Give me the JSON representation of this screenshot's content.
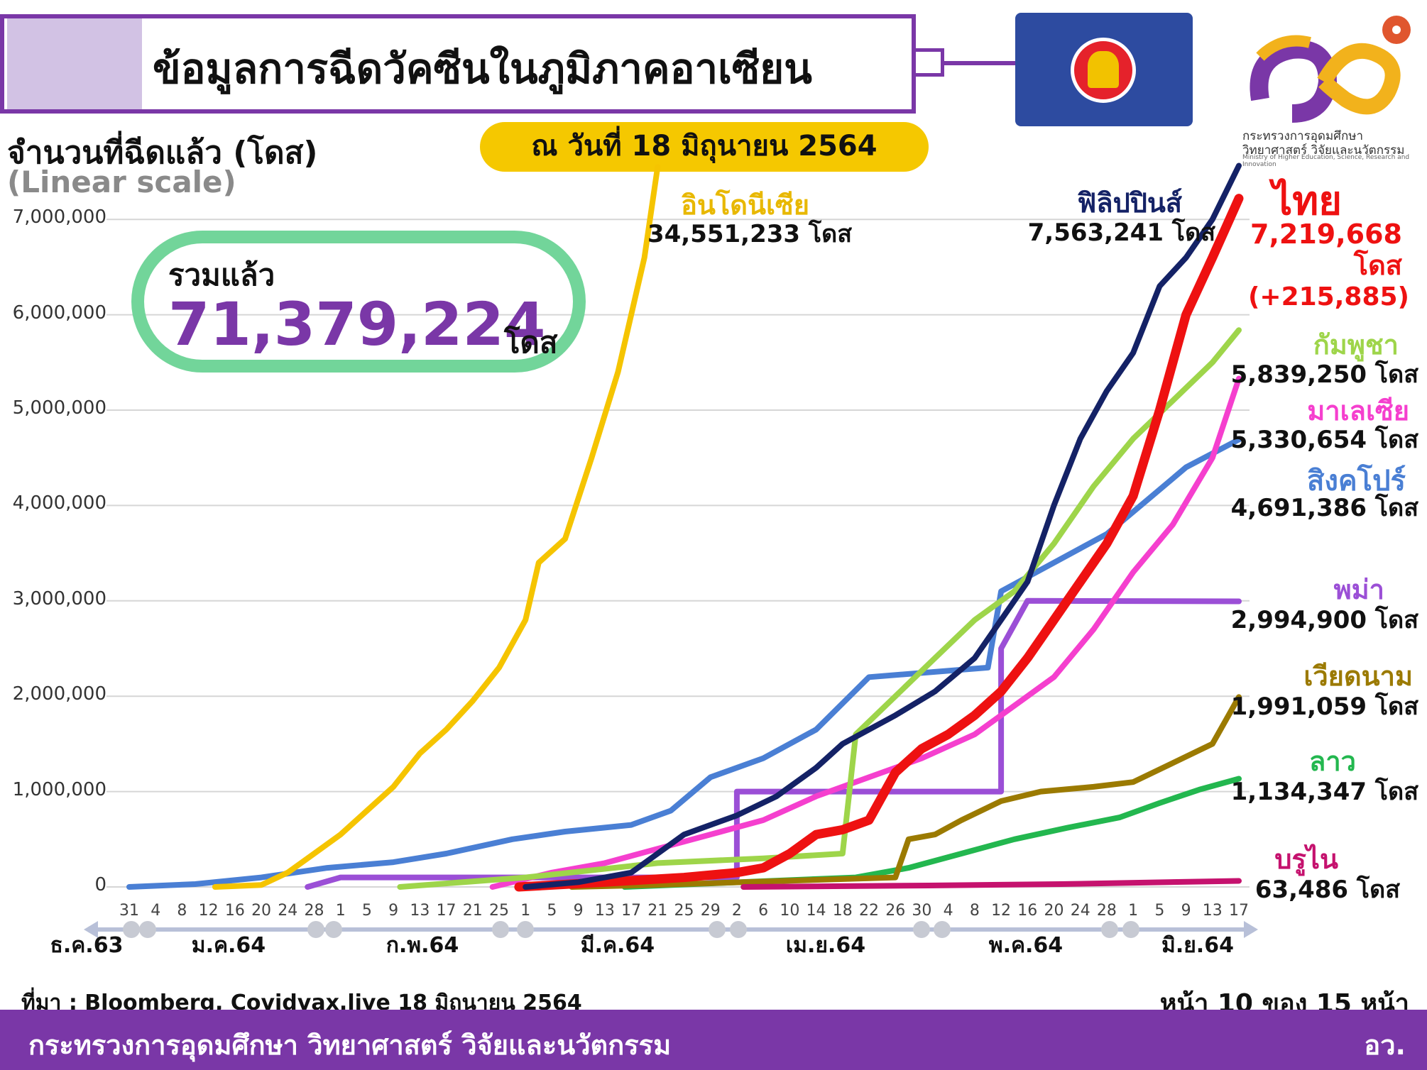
{
  "title": "ข้อมูลการฉีดวัคซีนในภูมิภาคอาเซียน",
  "date_label": "ณ วันที่ 18 มิถุนายน 2564",
  "y_axis_title": "จำนวนที่ฉีดแล้ว (โดส)",
  "y_scale_note": "(Linear scale)",
  "total": {
    "label": "รวมแล้ว",
    "value": "71,379,224",
    "unit": "โดส"
  },
  "logo": {
    "text1": "กระทรวงการอุดมศึกษา",
    "text2": "วิทยาศาสตร์ วิจัยและนวัตกรรม",
    "text3": "Ministry of Higher Education, Science, Research and Innovation"
  },
  "source": "ที่มา : Bloomberg, Covidvax.live 18 มิถุนายน 2564",
  "page": "หน้า 10 ของ 15 หน้า",
  "footer": {
    "ministry": "กระทรวงการอุดมศึกษา วิทยาศาสตร์ วิจัยและนวัตกรรม",
    "abbr": "อว."
  },
  "chart_data": {
    "type": "line",
    "ylim": [
      0,
      7500000
    ],
    "y_ticks": [
      "0",
      "1,000,000",
      "2,000,000",
      "3,000,000",
      "4,000,000",
      "5,000,000",
      "6,000,000",
      "7,000,000"
    ],
    "y_tick_values": [
      0,
      1000000,
      2000000,
      3000000,
      4000000,
      5000000,
      6000000,
      7000000
    ],
    "x_start": "2020-12-31",
    "x_end": "2021-06-17",
    "x_tick_labels": [
      "31",
      "4",
      "8",
      "12",
      "16",
      "20",
      "24",
      "28",
      "1",
      "5",
      "9",
      "13",
      "17",
      "21",
      "25",
      "1",
      "5",
      "9",
      "13",
      "17",
      "21",
      "25",
      "29",
      "2",
      "6",
      "10",
      "14",
      "18",
      "22",
      "26",
      "30",
      "4",
      "8",
      "12",
      "16",
      "20",
      "24",
      "28",
      "1",
      "5",
      "9",
      "13",
      "17"
    ],
    "months": [
      "ธ.ค.63",
      "ม.ค.64",
      "ก.พ.64",
      "มี.ค.64",
      "เม.ย.64",
      "พ.ค.64",
      "มิ.ย.64"
    ],
    "series": [
      {
        "name": "อินโดนีเซีย",
        "value_label": "34,551,233 โดส",
        "color": "#f5c400",
        "points": [
          [
            "2021-01-13",
            0
          ],
          [
            "2021-01-20",
            20000
          ],
          [
            "2021-01-24",
            150000
          ],
          [
            "2021-01-28",
            350000
          ],
          [
            "2021-02-01",
            550000
          ],
          [
            "2021-02-05",
            800000
          ],
          [
            "2021-02-09",
            1050000
          ],
          [
            "2021-02-13",
            1400000
          ],
          [
            "2021-02-17",
            1650000
          ],
          [
            "2021-02-21",
            1950000
          ],
          [
            "2021-02-25",
            2300000
          ],
          [
            "2021-03-01",
            2800000
          ],
          [
            "2021-03-03",
            3400000
          ],
          [
            "2021-03-07",
            3650000
          ],
          [
            "2021-03-11",
            4500000
          ],
          [
            "2021-03-15",
            5400000
          ],
          [
            "2021-03-19",
            6600000
          ],
          [
            "2021-03-21",
            7550000
          ]
        ]
      },
      {
        "name": "ฟิลิปปินส์",
        "value_label": "7,563,241 โดส",
        "color": "#142266",
        "points": [
          [
            "2021-03-01",
            0
          ],
          [
            "2021-03-09",
            50000
          ],
          [
            "2021-03-17",
            150000
          ],
          [
            "2021-03-21",
            350000
          ],
          [
            "2021-03-25",
            550000
          ],
          [
            "2021-04-02",
            750000
          ],
          [
            "2021-04-08",
            950000
          ],
          [
            "2021-04-14",
            1250000
          ],
          [
            "2021-04-18",
            1500000
          ],
          [
            "2021-04-26",
            1800000
          ],
          [
            "2021-05-02",
            2050000
          ],
          [
            "2021-05-08",
            2400000
          ],
          [
            "2021-05-12",
            2800000
          ],
          [
            "2021-05-16",
            3200000
          ],
          [
            "2021-05-20",
            4000000
          ],
          [
            "2021-05-24",
            4700000
          ],
          [
            "2021-05-28",
            5200000
          ],
          [
            "2021-06-01",
            5600000
          ],
          [
            "2021-06-05",
            6300000
          ],
          [
            "2021-06-09",
            6600000
          ],
          [
            "2021-06-13",
            7000000
          ],
          [
            "2021-06-17",
            7563241
          ]
        ]
      },
      {
        "name": "ไทย",
        "value_label": "7,219,668 โดส",
        "extra_label": "(+215,885)",
        "color": "#ee1111",
        "points": [
          [
            "2021-02-28",
            0
          ],
          [
            "2021-03-13",
            50000
          ],
          [
            "2021-03-25",
            100000
          ],
          [
            "2021-04-02",
            150000
          ],
          [
            "2021-04-06",
            200000
          ],
          [
            "2021-04-10",
            350000
          ],
          [
            "2021-04-14",
            550000
          ],
          [
            "2021-04-18",
            600000
          ],
          [
            "2021-04-22",
            700000
          ],
          [
            "2021-04-26",
            1200000
          ],
          [
            "2021-04-30",
            1450000
          ],
          [
            "2021-05-04",
            1600000
          ],
          [
            "2021-05-08",
            1800000
          ],
          [
            "2021-05-12",
            2050000
          ],
          [
            "2021-05-16",
            2400000
          ],
          [
            "2021-05-20",
            2800000
          ],
          [
            "2021-05-24",
            3200000
          ],
          [
            "2021-05-28",
            3600000
          ],
          [
            "2021-06-01",
            4100000
          ],
          [
            "2021-06-05",
            5000000
          ],
          [
            "2021-06-09",
            6000000
          ],
          [
            "2021-06-13",
            6600000
          ],
          [
            "2021-06-17",
            7219668
          ]
        ]
      },
      {
        "name": "กัมพูชา",
        "value_label": "5,839,250 โดส",
        "color": "#9ed54a",
        "points": [
          [
            "2021-02-10",
            0
          ],
          [
            "2021-03-01",
            100000
          ],
          [
            "2021-03-21",
            250000
          ],
          [
            "2021-04-06",
            300000
          ],
          [
            "2021-04-18",
            350000
          ],
          [
            "2021-04-20",
            1600000
          ],
          [
            "2021-04-26",
            2000000
          ],
          [
            "2021-05-02",
            2400000
          ],
          [
            "2021-05-08",
            2800000
          ],
          [
            "2021-05-14",
            3100000
          ],
          [
            "2021-05-20",
            3600000
          ],
          [
            "2021-05-26",
            4200000
          ],
          [
            "2021-06-01",
            4700000
          ],
          [
            "2021-06-07",
            5100000
          ],
          [
            "2021-06-13",
            5500000
          ],
          [
            "2021-06-17",
            5839250
          ]
        ]
      },
      {
        "name": "มาเลเซีย",
        "value_label": "5,330,654 โดส",
        "color": "#f53fce",
        "points": [
          [
            "2021-02-24",
            0
          ],
          [
            "2021-03-05",
            150000
          ],
          [
            "2021-03-13",
            250000
          ],
          [
            "2021-03-21",
            400000
          ],
          [
            "2021-03-29",
            550000
          ],
          [
            "2021-04-06",
            700000
          ],
          [
            "2021-04-14",
            950000
          ],
          [
            "2021-04-22",
            1150000
          ],
          [
            "2021-04-30",
            1350000
          ],
          [
            "2021-05-08",
            1600000
          ],
          [
            "2021-05-14",
            1900000
          ],
          [
            "2021-05-20",
            2200000
          ],
          [
            "2021-05-26",
            2700000
          ],
          [
            "2021-06-01",
            3300000
          ],
          [
            "2021-06-07",
            3800000
          ],
          [
            "2021-06-13",
            4500000
          ],
          [
            "2021-06-17",
            5330654
          ]
        ]
      },
      {
        "name": "สิงคโปร์",
        "value_label": "4,691,386 โดส",
        "color": "#4a7fd4",
        "points": [
          [
            "2020-12-31",
            0
          ],
          [
            "2021-01-10",
            30000
          ],
          [
            "2021-01-20",
            100000
          ],
          [
            "2021-01-30",
            200000
          ],
          [
            "2021-02-09",
            260000
          ],
          [
            "2021-02-17",
            350000
          ],
          [
            "2021-02-27",
            500000
          ],
          [
            "2021-03-07",
            580000
          ],
          [
            "2021-03-17",
            650000
          ],
          [
            "2021-03-23",
            800000
          ],
          [
            "2021-03-29",
            1150000
          ],
          [
            "2021-04-06",
            1350000
          ],
          [
            "2021-04-14",
            1650000
          ],
          [
            "2021-04-22",
            2200000
          ],
          [
            "2021-05-10",
            2300000
          ],
          [
            "2021-05-12",
            3100000
          ],
          [
            "2021-05-20",
            3400000
          ],
          [
            "2021-05-28",
            3700000
          ],
          [
            "2021-06-03",
            4050000
          ],
          [
            "2021-06-09",
            4400000
          ],
          [
            "2021-06-17",
            4691386
          ]
        ]
      },
      {
        "name": "พม่า",
        "value_label": "2,994,900 โดส",
        "color": "#9b4fd6",
        "points": [
          [
            "2021-01-27",
            0
          ],
          [
            "2021-02-01",
            100000
          ],
          [
            "2021-04-02",
            100000
          ],
          [
            "2021-04-02",
            1000000
          ],
          [
            "2021-05-12",
            1000000
          ],
          [
            "2021-05-12",
            2500000
          ],
          [
            "2021-05-16",
            3000000
          ],
          [
            "2021-06-17",
            2994900
          ]
        ]
      },
      {
        "name": "เวียดนาม",
        "value_label": "1,991,059 โดส",
        "color": "#9b7a00",
        "points": [
          [
            "2021-03-08",
            0
          ],
          [
            "2021-03-20",
            20000
          ],
          [
            "2021-04-26",
            100000
          ],
          [
            "2021-04-28",
            500000
          ],
          [
            "2021-05-02",
            550000
          ],
          [
            "2021-05-06",
            700000
          ],
          [
            "2021-05-12",
            900000
          ],
          [
            "2021-05-18",
            1000000
          ],
          [
            "2021-05-26",
            1050000
          ],
          [
            "2021-06-01",
            1100000
          ],
          [
            "2021-06-07",
            1300000
          ],
          [
            "2021-06-13",
            1500000
          ],
          [
            "2021-06-17",
            1991059
          ]
        ]
      },
      {
        "name": "ลาว",
        "value_label": "1,134,347 โดส",
        "color": "#23b74f",
        "points": [
          [
            "2021-03-16",
            0
          ],
          [
            "2021-04-20",
            100000
          ],
          [
            "2021-04-28",
            200000
          ],
          [
            "2021-05-06",
            350000
          ],
          [
            "2021-05-14",
            500000
          ],
          [
            "2021-05-22",
            620000
          ],
          [
            "2021-05-30",
            730000
          ],
          [
            "2021-06-05",
            880000
          ],
          [
            "2021-06-11",
            1020000
          ],
          [
            "2021-06-17",
            1134347
          ]
        ]
      },
      {
        "name": "บรูไน",
        "value_label": "63,486 โดส",
        "color": "#c5126e",
        "points": [
          [
            "2021-04-03",
            0
          ],
          [
            "2021-05-01",
            15000
          ],
          [
            "2021-05-21",
            30000
          ],
          [
            "2021-06-17",
            63486
          ]
        ]
      }
    ]
  }
}
